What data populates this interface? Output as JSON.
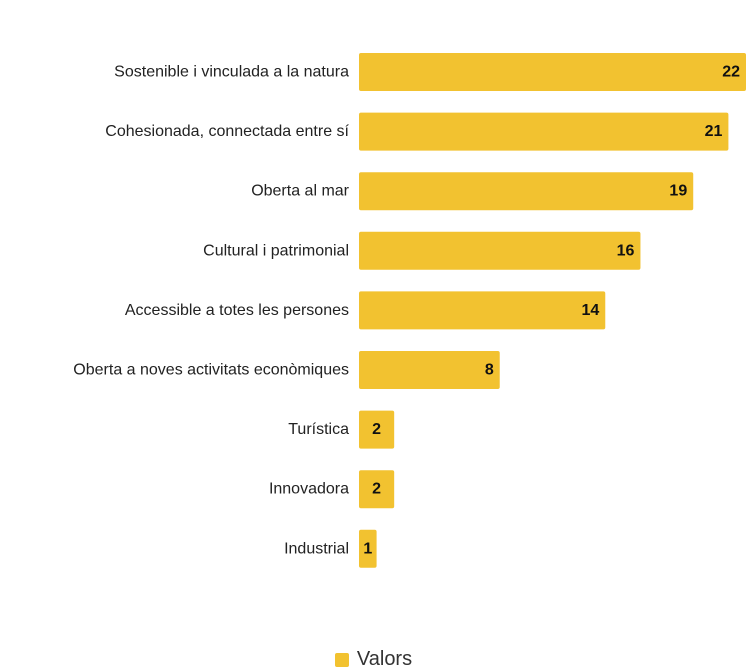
{
  "chart_data": {
    "type": "bar",
    "orientation": "horizontal",
    "categories": [
      "Sostenible i vinculada a la natura",
      "Cohesionada, connectada entre sí",
      "Oberta al mar",
      "Cultural i patrimonial",
      "Accessible a totes les persones",
      "Oberta a noves activitats econòmiques",
      "Turística",
      "Innovadora",
      "Industrial"
    ],
    "series": [
      {
        "name": "Valors",
        "values": [
          22,
          21,
          19,
          16,
          14,
          8,
          2,
          2,
          1
        ],
        "color": "#f2c230"
      }
    ],
    "xlim": [
      0,
      22
    ],
    "grid": false,
    "legend_position": "bottom-center",
    "data_labels": true
  },
  "legend": {
    "label": "Valors",
    "color": "#f2c230"
  }
}
